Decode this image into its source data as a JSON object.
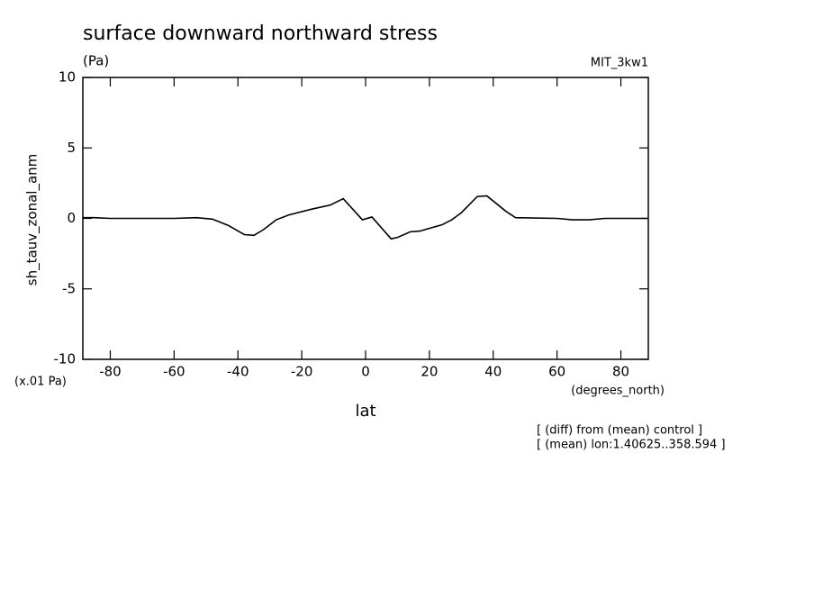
{
  "chart_data": {
    "type": "line",
    "title": "surface downward northward stress",
    "subtitle": "(Pa)",
    "dataset_label": "MIT_3kw1",
    "xlabel": "lat",
    "ylabel": "sh_tauv_zonal_anm",
    "y_unit_label": "(x.01 Pa)",
    "x_unit_label": "(degrees_north)",
    "annotations": [
      "[ (diff) from (mean) control ]",
      "[ (mean) lon:1.40625..358.594 ]"
    ],
    "x": [
      -88.6,
      -85,
      -80,
      -70,
      -60,
      -53,
      -48,
      -43,
      -38,
      -35,
      -32,
      -28,
      -24,
      -17,
      -11,
      -7,
      -1,
      2,
      8,
      10,
      14,
      17,
      24,
      27,
      30,
      35,
      38,
      44,
      47,
      60,
      65,
      70,
      75,
      88.6
    ],
    "series": [
      {
        "color": "#000000",
        "values": [
          0.05,
          0.05,
          0,
          0,
          0,
          0.05,
          -0.05,
          -0.5,
          -1.15,
          -1.2,
          -0.8,
          -0.1,
          0.25,
          0.65,
          0.95,
          1.4,
          -0.1,
          0.1,
          -1.45,
          -1.35,
          -0.95,
          -0.9,
          -0.45,
          -0.1,
          0.4,
          1.55,
          1.6,
          0.5,
          0.05,
          0,
          -0.1,
          -0.1,
          0,
          0
        ]
      }
    ],
    "xlim": [
      -88.6,
      88.6
    ],
    "ylim": [
      -10,
      10
    ],
    "xticks": [
      -80,
      -60,
      -40,
      -20,
      0,
      20,
      40,
      60,
      80
    ],
    "yticks": [
      -10,
      -5,
      0,
      5,
      10
    ]
  }
}
